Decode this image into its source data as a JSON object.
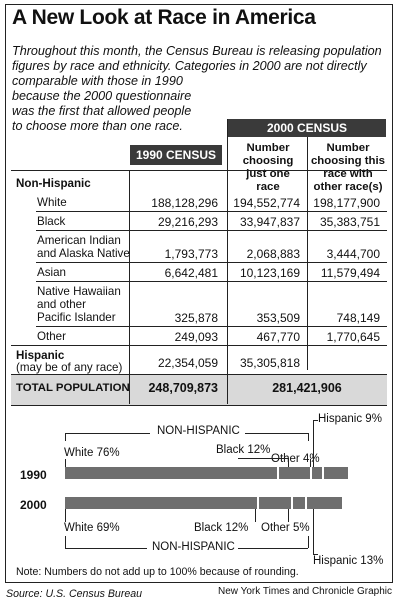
{
  "title": "A New Look at Race in America",
  "intro_lines": [
    "Throughout this month, the Census Bureau is releasing population",
    "figures by race and ethnicity. Categories in 2000 are not directly",
    "comparable with those in 1990",
    "because the 2000 questionnaire",
    "was the first that allowed people",
    "to choose more than one race."
  ],
  "table": {
    "census_1990_label": "1990 CENSUS",
    "census_2000_label": "2000 CENSUS",
    "col_one_race": [
      "Number",
      "choosing",
      "just one",
      "race"
    ],
    "col_multi_race": [
      "Number",
      "choosing this",
      "race with",
      "other race(s)"
    ],
    "section_non_hispanic": "Non-Hispanic",
    "rows": [
      {
        "label": [
          "White"
        ],
        "c1990": "188,128,296",
        "one": "194,552,774",
        "multi": "198,177,900"
      },
      {
        "label": [
          "Black"
        ],
        "c1990": "29,216,293",
        "one": "33,947,837",
        "multi": "35,383,751"
      },
      {
        "label": [
          "American Indian",
          "and Alaska Native"
        ],
        "c1990": "1,793,773",
        "one": "2,068,883",
        "multi": "3,444,700"
      },
      {
        "label": [
          "Asian"
        ],
        "c1990": "6,642,481",
        "one": "10,123,169",
        "multi": "11,579,494"
      },
      {
        "label": [
          "Native Hawaiian",
          "and other",
          "Pacific Islander"
        ],
        "c1990": "325,878",
        "one": "353,509",
        "multi": "748,149"
      },
      {
        "label": [
          "Other"
        ],
        "c1990": "249,093",
        "one": "467,770",
        "multi": "1,770,645"
      }
    ],
    "hispanic": {
      "label": "Hispanic",
      "sublabel": "(may be of any race)",
      "c1990": "22,354,059",
      "one": "35,305,818"
    },
    "total": {
      "label": "TOTAL POPULATION",
      "c1990": "248,709,873",
      "c2000": "281,421,906"
    }
  },
  "bars": {
    "non_hispanic_top": "NON-HISPANIC",
    "non_hispanic_bottom": "NON-HISPANIC",
    "year_1990": "1990",
    "year_2000": "2000",
    "shares_1990": [
      {
        "label": "White 76%",
        "value": 76
      },
      {
        "label": "Black 12%",
        "value": 12
      },
      {
        "label": "Other 4%",
        "value": 4
      },
      {
        "label": "Hispanic 9%",
        "value": 9
      }
    ],
    "shares_2000": [
      {
        "label": "White 69%",
        "value": 69
      },
      {
        "label": "Black 12%",
        "value": 12
      },
      {
        "label": "Other 5%",
        "value": 5
      },
      {
        "label": "Hispanic 13%",
        "value": 13
      }
    ]
  },
  "note": "Note: Numbers do not add up to 100% because of rounding.",
  "source": "Source: U.S. Census Bureau",
  "credit": "New York Times and Chronicle Graphic",
  "colors": {
    "bar": "#6e6e6e",
    "header_bg": "#3a3a3a",
    "total_bg": "#d9d9d9"
  }
}
